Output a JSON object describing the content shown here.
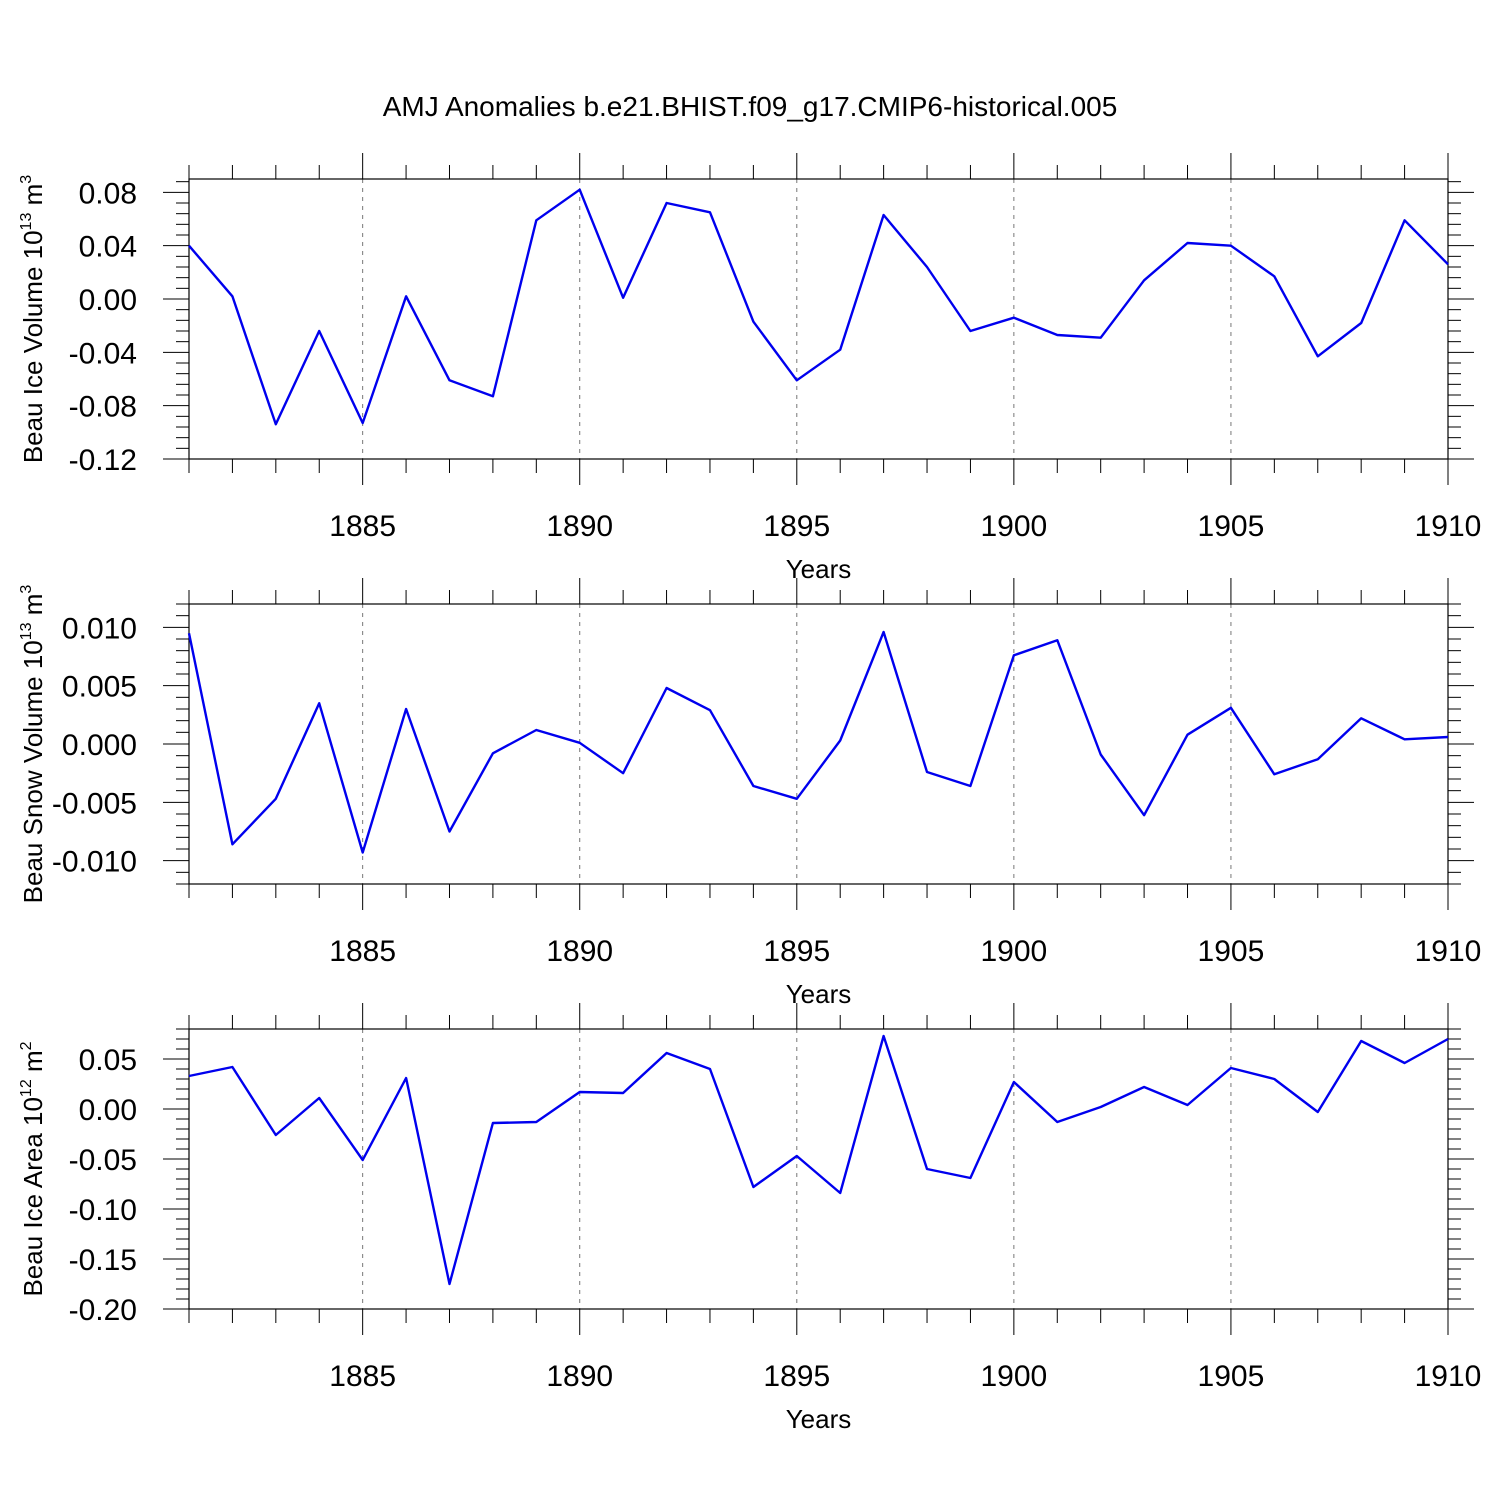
{
  "title": "AMJ Anomalies b.e21.BHIST.f09_g17.CMIP6-historical.005",
  "line_color": "#0000ee",
  "chart_data": [
    {
      "type": "line",
      "name": "ice-volume",
      "ylabel_text": "Beau Ice Volume 10",
      "ylabel_exp": "13",
      "ylabel_unit": "m",
      "ylabel_unit_exp": "3",
      "xlabel": "Years",
      "xlim": [
        1881,
        1910
      ],
      "ylim": [
        -0.12,
        0.09
      ],
      "yticks": [
        -0.12,
        -0.08,
        -0.04,
        0.0,
        0.04,
        0.08
      ],
      "ytick_labels": [
        "-0.12",
        "-0.08",
        "-0.04",
        "0.00",
        "0.04",
        "0.08"
      ],
      "xticks": [
        1885,
        1890,
        1895,
        1900,
        1905,
        1910
      ],
      "xtick_labels": [
        "1885",
        "1890",
        "1895",
        "1900",
        "1905",
        "1910"
      ],
      "x": [
        1881,
        1882,
        1883,
        1884,
        1885,
        1886,
        1887,
        1888,
        1889,
        1890,
        1891,
        1892,
        1893,
        1894,
        1895,
        1896,
        1897,
        1898,
        1899,
        1900,
        1901,
        1902,
        1903,
        1904,
        1905,
        1906,
        1907,
        1908,
        1909,
        1910
      ],
      "y": [
        0.04,
        0.002,
        -0.094,
        -0.024,
        -0.093,
        0.002,
        -0.061,
        -0.073,
        0.059,
        0.082,
        0.001,
        0.072,
        0.065,
        -0.017,
        -0.061,
        -0.038,
        0.063,
        0.024,
        -0.024,
        -0.014,
        -0.027,
        -0.029,
        0.014,
        0.042,
        0.04,
        0.017,
        -0.043,
        -0.018,
        0.059,
        0.026
      ]
    },
    {
      "type": "line",
      "name": "snow-volume",
      "ylabel_text": "Beau Snow Volume 10",
      "ylabel_exp": "13",
      "ylabel_unit": "m",
      "ylabel_unit_exp": "3",
      "xlabel": "Years",
      "xlim": [
        1881,
        1910
      ],
      "ylim": [
        -0.012,
        0.012
      ],
      "yticks": [
        -0.01,
        -0.005,
        0.0,
        0.005,
        0.01
      ],
      "ytick_labels": [
        "-0.010",
        "-0.005",
        "0.000",
        "0.005",
        "0.010"
      ],
      "xticks": [
        1885,
        1890,
        1895,
        1900,
        1905,
        1910
      ],
      "xtick_labels": [
        "1885",
        "1890",
        "1895",
        "1900",
        "1905",
        "1910"
      ],
      "x": [
        1881,
        1882,
        1883,
        1884,
        1885,
        1886,
        1887,
        1888,
        1889,
        1890,
        1891,
        1892,
        1893,
        1894,
        1895,
        1896,
        1897,
        1898,
        1899,
        1900,
        1901,
        1902,
        1903,
        1904,
        1905,
        1906,
        1907,
        1908,
        1909,
        1910
      ],
      "y": [
        0.0095,
        -0.0086,
        -0.0047,
        0.0035,
        -0.0093,
        0.003,
        -0.0075,
        -0.0008,
        0.0012,
        0.0001,
        -0.0025,
        0.0048,
        0.0029,
        -0.0036,
        -0.0047,
        0.0003,
        0.0096,
        -0.0024,
        -0.0036,
        0.0076,
        0.0089,
        -0.0009,
        -0.0061,
        0.0008,
        0.0031,
        -0.0026,
        -0.0013,
        0.0022,
        0.0004,
        0.0006
      ]
    },
    {
      "type": "line",
      "name": "ice-area",
      "ylabel_text": "Beau Ice Area 10",
      "ylabel_exp": "12",
      "ylabel_unit": "m",
      "ylabel_unit_exp": "2",
      "xlabel": "Years",
      "xlim": [
        1881,
        1910
      ],
      "ylim": [
        -0.2,
        0.08
      ],
      "yticks": [
        -0.2,
        -0.15,
        -0.1,
        -0.05,
        0.0,
        0.05
      ],
      "ytick_labels": [
        "-0.20",
        "-0.15",
        "-0.10",
        "-0.05",
        "0.00",
        "0.05"
      ],
      "xticks": [
        1885,
        1890,
        1895,
        1900,
        1905,
        1910
      ],
      "xtick_labels": [
        "1885",
        "1890",
        "1895",
        "1900",
        "1905",
        "1910"
      ],
      "x": [
        1881,
        1882,
        1883,
        1884,
        1885,
        1886,
        1887,
        1888,
        1889,
        1890,
        1891,
        1892,
        1893,
        1894,
        1895,
        1896,
        1897,
        1898,
        1899,
        1900,
        1901,
        1902,
        1903,
        1904,
        1905,
        1906,
        1907,
        1908,
        1909,
        1910
      ],
      "y": [
        0.033,
        0.042,
        -0.026,
        0.011,
        -0.051,
        0.031,
        -0.175,
        -0.014,
        -0.013,
        0.017,
        0.016,
        0.056,
        0.04,
        -0.078,
        -0.047,
        -0.084,
        0.073,
        -0.06,
        -0.069,
        0.027,
        -0.013,
        0.002,
        0.022,
        0.004,
        0.041,
        0.03,
        -0.003,
        0.068,
        0.046,
        0.07
      ]
    }
  ]
}
